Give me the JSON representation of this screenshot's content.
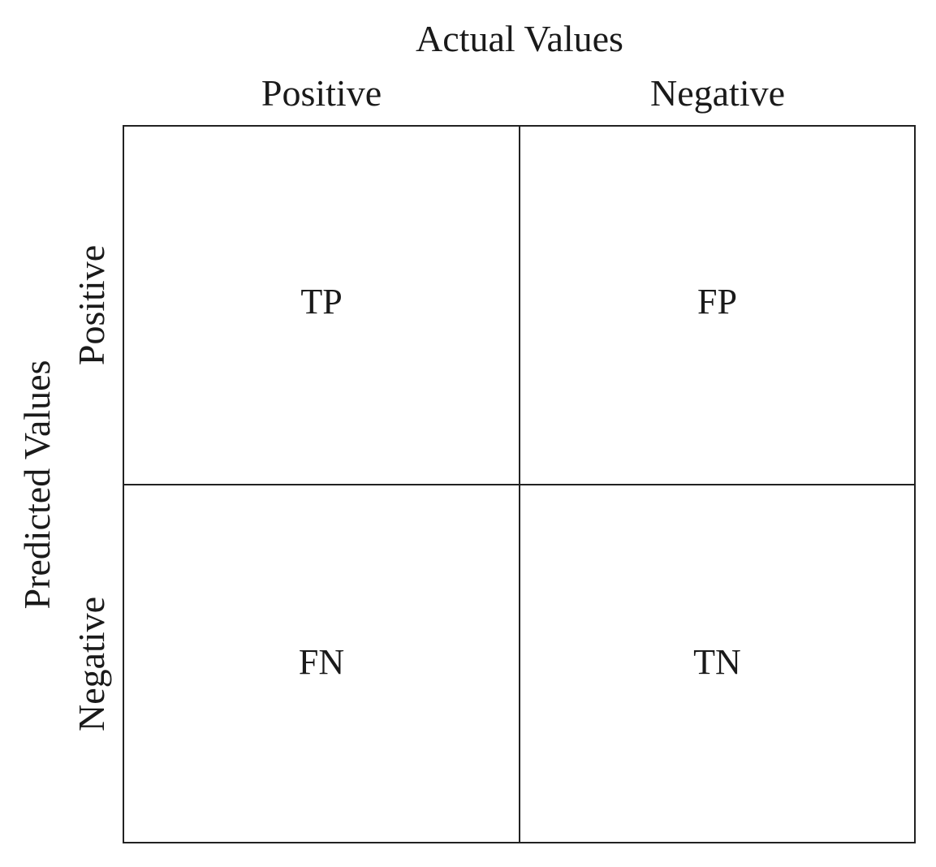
{
  "axes": {
    "actual_title": "Actual Values",
    "predicted_title": "Predicted Values"
  },
  "columns": {
    "positive": "Positive",
    "negative": "Negative"
  },
  "rows": {
    "positive": "Positive",
    "negative": "Negative"
  },
  "cells": {
    "top_left": "TP",
    "top_right": "FP",
    "bottom_left": "FN",
    "bottom_right": "TN"
  }
}
